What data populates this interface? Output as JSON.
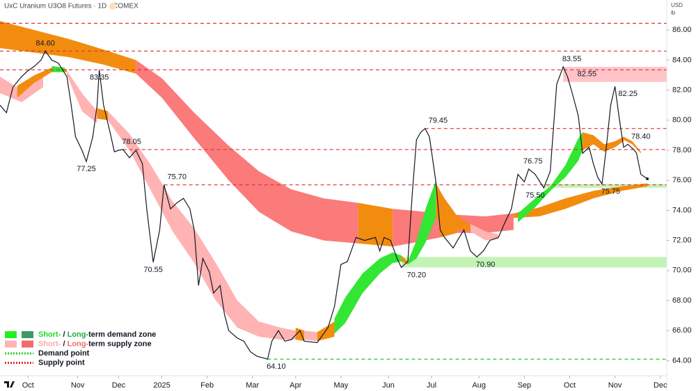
{
  "chart_data": {
    "type": "line",
    "title": "UxC Uranium U3O8 Futures · 1D · COMEX",
    "currency": "USD",
    "unit": "lb",
    "color": "#131722",
    "x": [
      0,
      3,
      6,
      10,
      13,
      16,
      19,
      21,
      24,
      27,
      31,
      33,
      35,
      38,
      40,
      43,
      45,
      46,
      48,
      51,
      53,
      55,
      57,
      60,
      63,
      66,
      68,
      71,
      74,
      76,
      79,
      82,
      85,
      88,
      90,
      92,
      94,
      97,
      99,
      102,
      104,
      106,
      110,
      113,
      116,
      119,
      124,
      126,
      129,
      132,
      135,
      139,
      141,
      147,
      152,
      155,
      158,
      161,
      165,
      169,
      174,
      176,
      178,
      181,
      184,
      186,
      189,
      191,
      193,
      195,
      197,
      199,
      202,
      204,
      206,
      210,
      212,
      215,
      218,
      221,
      224,
      227,
      231,
      234,
      237,
      240,
      243,
      245,
      248,
      252,
      255,
      258,
      261,
      263,
      265,
      268,
      270,
      273,
      275,
      277,
      279,
      281,
      283,
      285,
      287,
      289,
      291,
      294,
      295,
      297,
      300
    ],
    "values": [
      81.0,
      80.5,
      82.2,
      82.9,
      83.3,
      83.6,
      84.0,
      84.6,
      84.0,
      83.8,
      82.9,
      81.0,
      78.9,
      78.0,
      77.25,
      78.9,
      81.0,
      83.35,
      81.0,
      79.2,
      77.9,
      78.0,
      78.05,
      77.5,
      78.0,
      77.1,
      74.1,
      70.55,
      72.7,
      75.7,
      74.1,
      74.5,
      74.8,
      74.1,
      72.7,
      69.0,
      70.8,
      69.9,
      68.5,
      69.0,
      67.1,
      66.0,
      65.5,
      65.3,
      64.6,
      64.3,
      64.1,
      65.3,
      66.0,
      65.3,
      65.4,
      66.0,
      65.3,
      65.2,
      66.2,
      67.6,
      70.4,
      70.6,
      72.2,
      72.0,
      72.2,
      71.3,
      72.2,
      72.0,
      70.8,
      70.2,
      70.6,
      75.0,
      78.7,
      79.2,
      79.45,
      78.9,
      75.9,
      72.7,
      72.2,
      71.5,
      72.0,
      72.7,
      71.3,
      70.9,
      71.3,
      72.0,
      72.2,
      73.2,
      74.1,
      76.4,
      75.9,
      76.75,
      76.4,
      75.5,
      76.6,
      82.4,
      83.55,
      82.9,
      81.9,
      80.3,
      77.8,
      78.2,
      77.1,
      76.2,
      75.75,
      78.2,
      81.0,
      82.25,
      80.1,
      78.2,
      78.4,
      78.0,
      77.8,
      76.4,
      76.1
    ],
    "xlim": [
      0,
      309
    ],
    "xticks": [
      {
        "value": 13,
        "label": "Oct"
      },
      {
        "value": 36,
        "label": "Nov"
      },
      {
        "value": 55,
        "label": "Dec"
      },
      {
        "value": 75,
        "label": "2025"
      },
      {
        "value": 96,
        "label": "Feb"
      },
      {
        "value": 117,
        "label": "Mar"
      },
      {
        "value": 137,
        "label": "Apr"
      },
      {
        "value": 158,
        "label": "May"
      },
      {
        "value": 180,
        "label": "Jun"
      },
      {
        "value": 200,
        "label": "Jul"
      },
      {
        "value": 222,
        "label": "Aug"
      },
      {
        "value": 243,
        "label": "Sep"
      },
      {
        "value": 264,
        "label": "Oct"
      },
      {
        "value": 285,
        "label": "Nov"
      },
      {
        "value": 306,
        "label": "Dec"
      }
    ],
    "ylim": [
      63,
      88
    ],
    "yticks": [
      {
        "value": 64,
        "label": "64.00"
      },
      {
        "value": 66,
        "label": "66.00"
      },
      {
        "value": 68,
        "label": "68.00"
      },
      {
        "value": 70,
        "label": "70.00"
      },
      {
        "value": 72,
        "label": "72.00"
      },
      {
        "value": 74,
        "label": "74.00"
      },
      {
        "value": 76,
        "label": "76.00"
      },
      {
        "value": 78,
        "label": "78.00"
      },
      {
        "value": 80,
        "label": "80.00"
      },
      {
        "value": 82,
        "label": "82.00"
      },
      {
        "value": 84,
        "label": "84.00"
      },
      {
        "value": 86,
        "label": "86.00"
      }
    ],
    "bands": [
      {
        "color": "#f28c0f",
        "x": [
          0,
          16,
          32,
          48,
          63
        ],
        "upper": [
          86.6,
          86.0,
          85.4,
          84.7,
          84.0
        ],
        "lower": [
          84.8,
          84.5,
          84.2,
          83.7,
          83.1
        ]
      },
      {
        "color": "#fb7a7a",
        "x": [
          63,
          75,
          90,
          106,
          120,
          135,
          150,
          166
        ],
        "upper": [
          84.0,
          82.8,
          80.5,
          78.3,
          76.6,
          75.4,
          74.8,
          74.5
        ],
        "lower": [
          83.1,
          81.5,
          78.8,
          76.0,
          73.9,
          72.6,
          72.0,
          71.8
        ]
      },
      {
        "color": "#f28c0f",
        "x": [
          166,
          174,
          182
        ],
        "upper": [
          74.5,
          74.3,
          74.1
        ],
        "lower": [
          71.8,
          71.7,
          71.6
        ]
      },
      {
        "color": "#fb7a7a",
        "x": [
          182,
          190,
          204
        ],
        "upper": [
          74.1,
          74.0,
          73.8
        ],
        "lower": [
          71.6,
          71.8,
          72.2
        ]
      },
      {
        "color": "#f28c0f",
        "x": [
          204,
          212
        ],
        "upper": [
          73.8,
          73.7
        ],
        "lower": [
          72.2,
          72.5
        ]
      },
      {
        "color": "#fb7a7a",
        "x": [
          212,
          225,
          238
        ],
        "upper": [
          73.7,
          73.6,
          73.8
        ],
        "lower": [
          72.5,
          72.5,
          72.7
        ]
      },
      {
        "color": "#f28c0f",
        "x": [
          238,
          250,
          262,
          275,
          288,
          300
        ],
        "upper": [
          73.8,
          74.2,
          74.8,
          75.3,
          75.6,
          75.8
        ],
        "lower": [
          73.5,
          73.6,
          74.1,
          74.8,
          75.3,
          75.6
        ]
      },
      {
        "color": "#ffb3b3",
        "x": [
          0,
          10,
          20
        ],
        "upper": [
          82.9,
          82.0,
          83.0
        ],
        "lower": [
          81.8,
          81.2,
          82.2
        ]
      },
      {
        "color": "#f28c0f",
        "x": [
          8,
          16,
          24,
          31
        ],
        "upper": [
          82.3,
          83.0,
          83.5,
          83.4
        ],
        "lower": [
          81.5,
          82.5,
          83.2,
          83.2
        ]
      },
      {
        "color": "#33e633",
        "x": [
          24,
          30
        ],
        "upper": [
          83.6,
          83.5
        ],
        "lower": [
          83.2,
          83.2
        ]
      },
      {
        "color": "#ffb3b3",
        "x": [
          31,
          38,
          45
        ],
        "upper": [
          83.3,
          81.8,
          80.6
        ],
        "lower": [
          83.0,
          80.6,
          79.8
        ]
      },
      {
        "color": "#f28c0f",
        "x": [
          45,
          50
        ],
        "upper": [
          80.8,
          80.6
        ],
        "lower": [
          80.1,
          80.0
        ]
      },
      {
        "color": "#ffb3b3",
        "x": [
          50,
          60,
          70,
          80,
          90,
          100,
          110,
          120,
          130,
          137
        ],
        "upper": [
          80.6,
          79.1,
          77.0,
          74.6,
          72.8,
          70.5,
          68.0,
          66.6,
          66.2,
          66.0
        ],
        "lower": [
          80.0,
          78.0,
          75.3,
          72.6,
          70.5,
          68.0,
          66.2,
          65.6,
          65.4,
          65.4
        ]
      },
      {
        "color": "#f28c0f",
        "x": [
          137,
          141
        ],
        "upper": [
          66.2,
          66.0
        ],
        "lower": [
          65.4,
          65.3
        ]
      },
      {
        "color": "#ffb3b3",
        "x": [
          141,
          147
        ],
        "upper": [
          66.0,
          65.9
        ],
        "lower": [
          65.4,
          65.3
        ]
      },
      {
        "color": "#f28c0f",
        "x": [
          147,
          155
        ],
        "upper": [
          65.9,
          66.6
        ],
        "lower": [
          65.3,
          65.6
        ]
      },
      {
        "color": "#33e633",
        "x": [
          155,
          160,
          168,
          176,
          182,
          186
        ],
        "upper": [
          66.8,
          68.2,
          69.8,
          70.8,
          71.2,
          71.0
        ],
        "lower": [
          65.8,
          66.5,
          68.5,
          69.8,
          70.5,
          70.6
        ]
      },
      {
        "color": "#f28c0f",
        "x": [
          186,
          189
        ],
        "upper": [
          71.0,
          70.6
        ],
        "lower": [
          70.6,
          70.4
        ]
      },
      {
        "color": "#33e633",
        "x": [
          189,
          193,
          197,
          202
        ],
        "upper": [
          70.6,
          72.0,
          74.0,
          76.0
        ],
        "lower": [
          70.4,
          70.8,
          71.8,
          73.5
        ]
      },
      {
        "color": "#f28c0f",
        "x": [
          202,
          206,
          212,
          218
        ],
        "upper": [
          75.8,
          74.8,
          73.6,
          73.1
        ],
        "lower": [
          73.5,
          73.0,
          72.8,
          72.6
        ]
      },
      {
        "color": "#ffb3b3",
        "x": [
          218,
          225,
          231
        ],
        "upper": [
          73.1,
          72.6,
          72.4
        ],
        "lower": [
          72.6,
          72.0,
          72.1
        ]
      },
      {
        "color": "#33e633",
        "x": [
          240,
          248,
          255,
          262,
          268,
          270
        ],
        "upper": [
          73.8,
          74.8,
          75.6,
          77.0,
          78.8,
          79.2
        ],
        "lower": [
          73.2,
          74.2,
          75.3,
          76.2,
          77.3,
          78.0
        ]
      },
      {
        "color": "#f28c0f",
        "x": [
          270,
          275,
          280,
          285,
          289
        ],
        "upper": [
          79.2,
          79.0,
          78.4,
          78.6,
          78.9
        ],
        "lower": [
          78.0,
          78.4,
          77.9,
          78.2,
          78.6
        ]
      },
      {
        "color": "#f28c0f",
        "x": [
          289,
          293,
          297
        ],
        "upper": [
          78.9,
          78.6,
          77.9
        ],
        "lower": [
          78.7,
          78.4,
          77.8
        ]
      }
    ],
    "supply_zones": [
      {
        "from": 261,
        "lower": 82.55,
        "upper": 83.55,
        "color": "#ffb8be"
      }
    ],
    "demand_zones": [
      {
        "from": 186,
        "lower": 70.2,
        "upper": 70.9,
        "color": "#b9f2a9"
      },
      {
        "from": 252,
        "lower": 75.5,
        "upper": 75.75,
        "color": "#b9f2a9"
      }
    ],
    "supply_points": {
      "color": "#e03030",
      "levels": [
        {
          "value": 86.45,
          "from": 0
        },
        {
          "value": 84.6,
          "from": 0
        },
        {
          "value": 83.35,
          "from": 0
        },
        {
          "value": 79.45,
          "from": 197
        },
        {
          "value": 78.05,
          "from": 57
        },
        {
          "value": 75.7,
          "from": 76
        }
      ]
    },
    "demand_points": {
      "color": "#22cc22",
      "levels": [
        {
          "value": 64.1,
          "from": 124
        }
      ]
    },
    "annotations": [
      {
        "x": 21,
        "y": 84.6,
        "label": "84.60",
        "position": "above"
      },
      {
        "x": 46,
        "y": 83.35,
        "label": "83.35",
        "position": "below"
      },
      {
        "x": 40,
        "y": 77.25,
        "label": "77.25",
        "position": "below"
      },
      {
        "x": 61,
        "y": 78.05,
        "label": "78.05",
        "position": "above"
      },
      {
        "x": 82,
        "y": 75.7,
        "label": "75.70",
        "position": "above"
      },
      {
        "x": 71,
        "y": 70.55,
        "label": "70.55",
        "position": "below"
      },
      {
        "x": 128,
        "y": 64.1,
        "label": "64.10",
        "position": "below"
      },
      {
        "x": 193,
        "y": 70.2,
        "label": "70.20",
        "position": "below"
      },
      {
        "x": 203,
        "y": 79.45,
        "label": "79.45",
        "position": "above"
      },
      {
        "x": 225,
        "y": 70.9,
        "label": "70.90",
        "position": "below"
      },
      {
        "x": 247,
        "y": 76.75,
        "label": "76.75",
        "position": "above"
      },
      {
        "x": 248,
        "y": 75.5,
        "label": "75.50",
        "position": "below"
      },
      {
        "x": 265,
        "y": 83.55,
        "label": "83.55",
        "position": "above"
      },
      {
        "x": 272,
        "y": 82.55,
        "label": "82.55",
        "position": "above"
      },
      {
        "x": 291,
        "y": 82.25,
        "label": "82.25",
        "position": "below"
      },
      {
        "x": 283,
        "y": 75.75,
        "label": "75.75",
        "position": "below"
      },
      {
        "x": 297,
        "y": 78.4,
        "label": "78.40",
        "position": "above"
      }
    ],
    "legend": [
      {
        "swatches": [
          "#22ee22",
          "#3a9a6a"
        ],
        "parts": [
          {
            "text": "Short-",
            "color": "#22dd22"
          },
          {
            "text": " / ",
            "color": "#131722"
          },
          {
            "text": "Long-",
            "color": "#22aa44"
          },
          {
            "text": "term demand zone",
            "color": "#131722"
          }
        ]
      },
      {
        "swatches": [
          "#ffb3b3",
          "#f26b6b"
        ],
        "parts": [
          {
            "text": "Short-",
            "color": "#ffaaaa"
          },
          {
            "text": " / ",
            "color": "#131722"
          },
          {
            "text": "Long-",
            "color": "#f26b6b"
          },
          {
            "text": "term supply zone",
            "color": "#131722"
          }
        ]
      },
      {
        "dotted": "#22cc22",
        "parts": [
          {
            "text": "Demand point",
            "color": "#131722"
          }
        ]
      },
      {
        "dotted": "#e03030",
        "parts": [
          {
            "text": "Supply point",
            "color": "#131722"
          }
        ]
      }
    ]
  }
}
